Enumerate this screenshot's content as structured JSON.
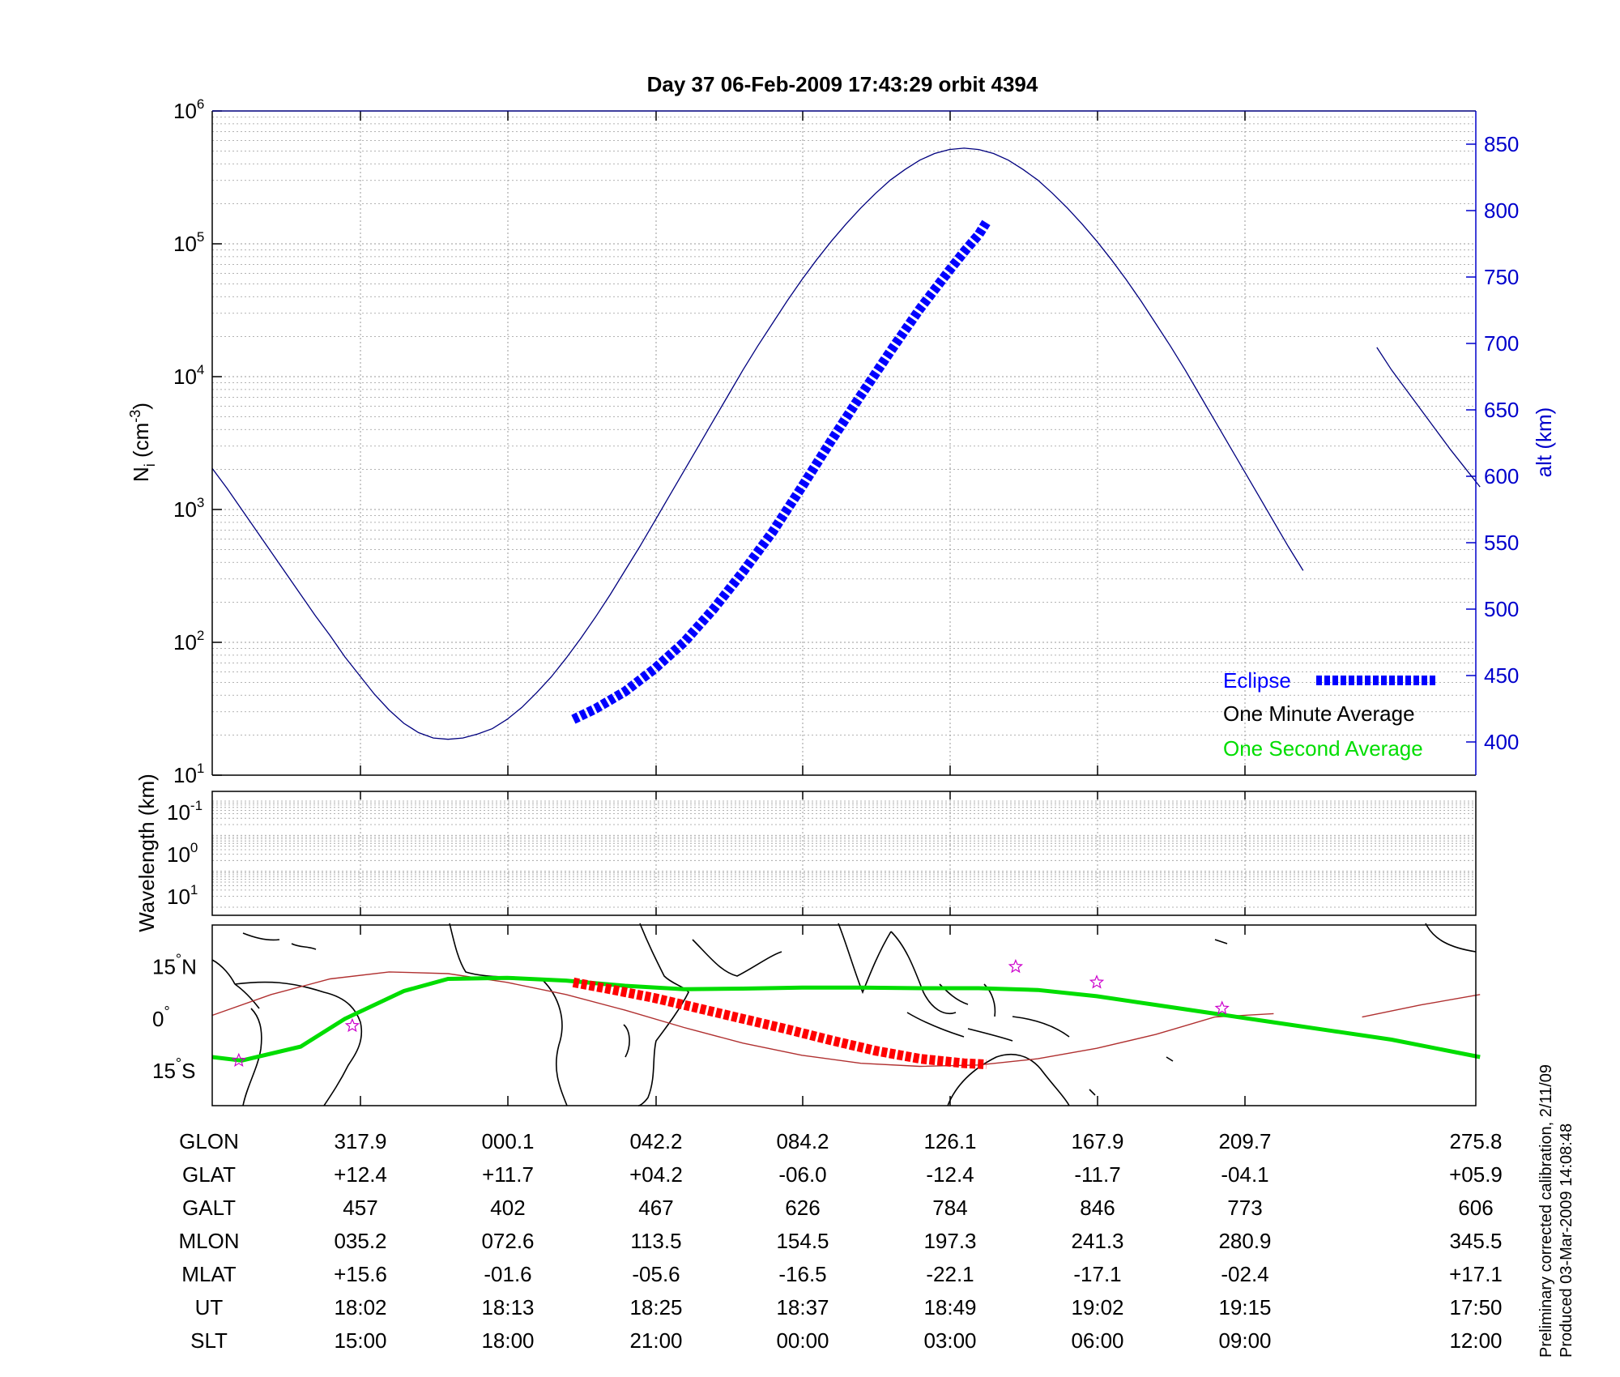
{
  "colors": {
    "altitude_line": "#00007f",
    "eclipse": "#0000ff",
    "one_second": "#00dd00",
    "track_red": "#ff0000",
    "track_line": "#b03030",
    "stars": "#cc00cc",
    "grid": "#9a9a9a"
  },
  "chart_data": [
    {
      "type": "line",
      "title": "Day 37  06-Feb-2009 17:43:29   orbit 4394",
      "ylabel_left_main": "N",
      "ylabel_left_sub": "i",
      "ylabel_left_unit_pre": " (cm",
      "ylabel_left_unit_sup": "-3",
      "ylabel_left_unit_post": ")",
      "ylabel_right": "alt (km)",
      "y_scale_left": "log",
      "ylim_left": [
        10,
        1000000
      ],
      "yticks_left": [
        {
          "base": "10",
          "exp": "6",
          "value": 1000000
        },
        {
          "base": "10",
          "exp": "5",
          "value": 100000
        },
        {
          "base": "10",
          "exp": "4",
          "value": 10000
        },
        {
          "base": "10",
          "exp": "3",
          "value": 1000
        },
        {
          "base": "10",
          "exp": "2",
          "value": 100
        },
        {
          "base": "10",
          "exp": "1",
          "value": 10
        }
      ],
      "ylim_right": [
        375,
        875
      ],
      "yticks_right": [
        "850",
        "800",
        "750",
        "700",
        "650",
        "600",
        "550",
        "500",
        "450",
        "400"
      ],
      "grid": true,
      "legend_position": "bottom-right",
      "legend": [
        {
          "label": "Eclipse",
          "color": "#0000ff"
        },
        {
          "label": "One Minute Average",
          "color": "#000000"
        },
        {
          "label": "One Second Average",
          "color": "#00dd00"
        }
      ],
      "series": [
        {
          "role": "altitude",
          "axis": "right",
          "x": [
            0,
            0.1,
            0.2,
            0.3,
            0.4,
            0.5,
            0.6,
            0.7,
            0.8,
            0.9,
            1.0,
            1.1,
            1.2,
            1.3,
            1.4,
            1.5,
            1.6,
            1.7,
            1.8,
            1.9,
            2.0,
            2.1,
            2.2,
            2.3,
            2.4,
            2.5,
            2.6,
            2.7,
            2.8,
            2.9,
            3.0,
            3.1,
            3.2,
            3.3,
            3.4,
            3.5,
            3.6,
            3.7,
            3.8,
            3.9,
            4.0,
            4.1,
            4.2,
            4.3,
            4.4,
            4.5,
            4.6,
            4.7,
            4.8,
            4.9,
            5.0,
            5.1,
            5.2,
            5.3,
            5.4,
            5.5,
            5.6,
            5.7,
            5.8,
            5.9,
            6.0,
            6.1,
            6.2,
            6.3,
            6.4,
            6.5,
            6.6,
            6.7,
            6.8,
            6.9,
            7.0,
            7.1,
            7.2,
            7.3,
            7.4,
            7.4,
            7.9,
            8.0,
            8.1,
            8.2,
            8.3,
            8.4,
            8.5,
            8.6
          ],
          "y": [
            606,
            591,
            575,
            559,
            543,
            527,
            511,
            495,
            480,
            464,
            450,
            436,
            424,
            414,
            407,
            403,
            402,
            403,
            406,
            410,
            417,
            426,
            437,
            449,
            463,
            478,
            494,
            511,
            529,
            547,
            566,
            585,
            604,
            623,
            642,
            661,
            680,
            698,
            715,
            732,
            748,
            763,
            777,
            790,
            802,
            813,
            823,
            831,
            838,
            843,
            846,
            847,
            846,
            843,
            838,
            831,
            823,
            813,
            802,
            790,
            777,
            763,
            748,
            732,
            715,
            698,
            680,
            661,
            642,
            623,
            604,
            585,
            566,
            547,
            529,
            null,
            697,
            680,
            665,
            650,
            635,
            620,
            606,
            592
          ]
        },
        {
          "role": "eclipse",
          "axis": "right",
          "x": [
            2.45,
            2.6,
            2.8,
            3.0,
            3.2,
            3.4,
            3.6,
            3.8,
            4.0,
            4.2,
            4.4,
            4.6,
            4.8,
            5.0,
            5.1,
            5.2,
            5.25
          ],
          "y": [
            417,
            425,
            438,
            455,
            475,
            500,
            528,
            558,
            592,
            627,
            661,
            694,
            726,
            755,
            769,
            782,
            791
          ]
        }
      ]
    },
    {
      "type": "heatmap",
      "ylabel": "Wavelength (km)",
      "y_scale": "log",
      "yticks": [
        {
          "base": "10",
          "exp": "-1"
        },
        {
          "base": "10",
          "exp": "0"
        },
        {
          "base": "10",
          "exp": "1"
        }
      ],
      "grid": true,
      "values": []
    },
    {
      "type": "line",
      "map": true,
      "yticks": [
        {
          "label": "15",
          "hemi": "N",
          "value": 15
        },
        {
          "label": "0",
          "hemi": "",
          "value": 0
        },
        {
          "label": "15",
          "hemi": "S",
          "value": -15
        }
      ],
      "ylim": [
        -25,
        27
      ],
      "series": [
        {
          "role": "orbit-track",
          "x": [
            0.0,
            0.4,
            0.8,
            1.2,
            1.6,
            2.0,
            2.4,
            2.8,
            3.2,
            3.6,
            4.0,
            4.4,
            4.8,
            5.2,
            5.6,
            6.0,
            6.4,
            6.8,
            7.2,
            7.4,
            7.8,
            8.2,
            8.6
          ],
          "y": [
            1,
            7,
            11.5,
            13.5,
            13.0,
            10.5,
            7,
            2.5,
            -2.5,
            -7,
            -10.5,
            -12.8,
            -13.7,
            -13.3,
            -11.5,
            -8.5,
            -4.5,
            0.5,
            1.5,
            null,
            0.5,
            4,
            7
          ]
        },
        {
          "role": "one-second-average",
          "x": [
            0.0,
            0.2,
            0.6,
            0.9,
            1.3,
            1.6,
            2.0,
            2.4,
            2.8,
            3.2,
            3.6,
            4.0,
            4.4,
            4.8,
            5.2,
            5.6,
            6.0,
            6.4,
            6.8,
            7.2,
            7.6,
            8.0,
            8.6
          ],
          "y": [
            -11,
            -12,
            -8,
            0,
            8,
            11.5,
            11.8,
            11,
            9.5,
            8.5,
            8.7,
            9.0,
            9.0,
            8.8,
            8.8,
            8.3,
            6.5,
            4,
            1.5,
            -1,
            -3.5,
            -6,
            -11
          ]
        },
        {
          "role": "eclipse-track",
          "x": [
            2.45,
            2.7,
            3.0,
            3.3,
            3.6,
            3.9,
            4.2,
            4.5,
            4.8,
            5.1,
            5.25
          ],
          "y": [
            10.5,
            8.5,
            6,
            3,
            0,
            -3,
            -6.2,
            -9.2,
            -11.5,
            -12.8,
            -13.1
          ]
        },
        {
          "role": "stars",
          "x": [
            0.18,
            0.95,
            5.45,
            6.0,
            6.85
          ],
          "y": [
            -12,
            -2,
            15,
            10.5,
            3
          ]
        }
      ]
    }
  ],
  "ephemeris": {
    "row_labels": [
      "GLON",
      "GLAT",
      "GALT",
      "MLON",
      "MLAT",
      "UT",
      "SLT"
    ],
    "columns": [
      [
        "317.9",
        "+12.4",
        "457",
        "035.2",
        "+15.6",
        "18:02",
        "15:00"
      ],
      [
        "000.1",
        "+11.7",
        "402",
        "072.6",
        "-01.6",
        "18:13",
        "18:00"
      ],
      [
        "042.2",
        "+04.2",
        "467",
        "113.5",
        "-05.6",
        "18:25",
        "21:00"
      ],
      [
        "084.2",
        "-06.0",
        "626",
        "154.5",
        "-16.5",
        "18:37",
        "00:00"
      ],
      [
        "126.1",
        "-12.4",
        "784",
        "197.3",
        "-22.1",
        "18:49",
        "03:00"
      ],
      [
        "167.9",
        "-11.7",
        "846",
        "241.3",
        "-17.1",
        "19:02",
        "06:00"
      ],
      [
        "209.7",
        "-04.1",
        "773",
        "280.9",
        "-02.4",
        "19:15",
        "09:00"
      ],
      [
        "275.8",
        "+05.9",
        "606",
        "345.5",
        "+17.1",
        "17:50",
        "12:00"
      ]
    ]
  },
  "footer": {
    "line1": "Preliminary corrected calibration, 2/11/09",
    "line2": "Produced 03-Mar-2009 14:08:48"
  }
}
